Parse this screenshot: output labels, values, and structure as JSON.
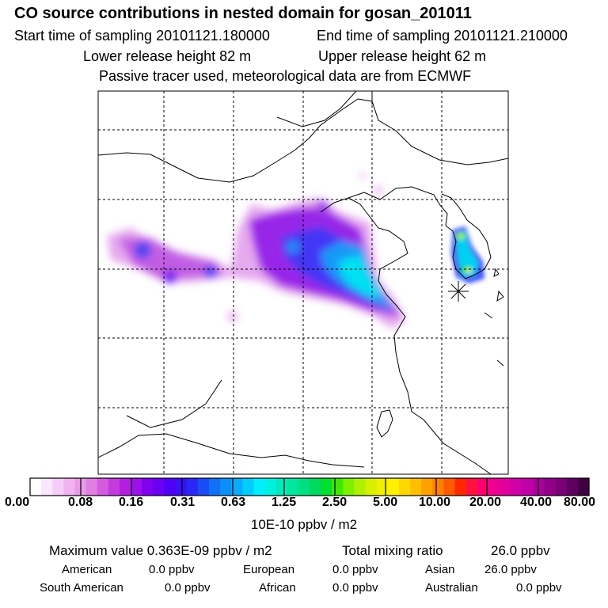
{
  "header": {
    "title": "CO  source contributions in nested domain for gosan_201011",
    "start_time": "Start time of sampling 20101121.180000",
    "end_time": "End time of sampling 20101121.210000",
    "lower_release": "Lower release height   82 m",
    "upper_release": "Upper release height   62 m",
    "tracer_note": "Passive tracer used, meteorological data are from ECMWF"
  },
  "colors": {
    "colorbar": [
      "#ffffff",
      "#fbe6fb",
      "#f6cdf6",
      "#efb4ef",
      "#e89be8",
      "#e17ee3",
      "#d45ce0",
      "#c43bdd",
      "#b21fe0",
      "#9a12e8",
      "#8000f0",
      "#6a00f4",
      "#5000f6",
      "#3a10f6",
      "#2a28f6",
      "#1a4cf6",
      "#1070f6",
      "#0c8ef8",
      "#08acfa",
      "#04ccfc",
      "#00eefc",
      "#00f0e0",
      "#00eac0",
      "#00e6a0",
      "#00e080",
      "#00d860",
      "#00e030",
      "#40e800",
      "#7ef000",
      "#b0f000",
      "#d8f000",
      "#f0f000",
      "#fff000",
      "#ffd800",
      "#ffbe00",
      "#ffa000",
      "#ff8000",
      "#ff5a00",
      "#ff2800",
      "#ff1040",
      "#ff0070",
      "#f00090",
      "#e0009e",
      "#d000a8",
      "#c000a8",
      "#aa009a",
      "#92008a",
      "#7a007a",
      "#5e005e",
      "#400040"
    ]
  },
  "colorbar_ticks": [
    "0.00",
    "0.08",
    "0.16",
    "0.31",
    "0.63",
    "1.25",
    "2.50",
    "5.00",
    "10.00",
    "20.00",
    "40.00",
    "80.00"
  ],
  "unit_label": "10E-10 ppbv / m2",
  "summary": {
    "max_label": "Maximum value  0.363E-09 ppbv / m2",
    "total_label": "Total mixing ratio",
    "total_value": "26.0 ppbv",
    "regions": [
      {
        "name": "American",
        "value": "0.0 ppbv"
      },
      {
        "name": "European",
        "value": "0.0 ppbv"
      },
      {
        "name": "Asian",
        "value": "26.0 ppbv"
      },
      {
        "name": "South American",
        "value": "0.0 ppbv"
      },
      {
        "name": "African",
        "value": "0.0 ppbv"
      },
      {
        "name": "Australian",
        "value": "0.0 ppbv"
      }
    ]
  }
}
